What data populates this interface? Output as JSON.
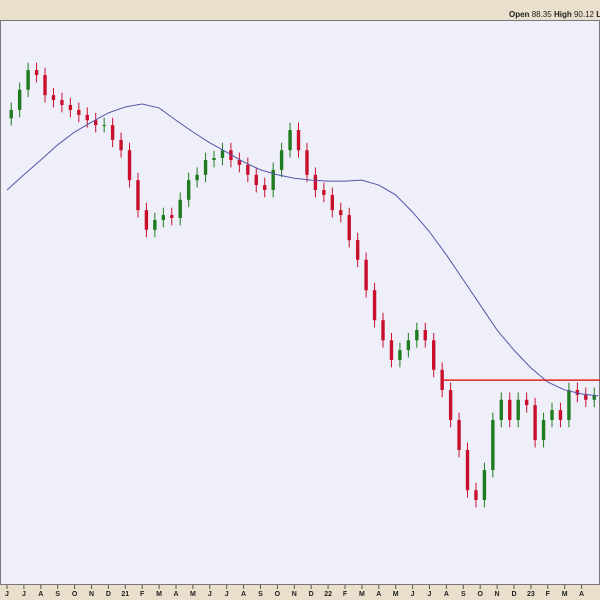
{
  "header": {
    "open_label": "Open",
    "open": 88.35,
    "high_label": "High",
    "high": 90.12,
    "low_label": "Lo"
  },
  "chart_data": {
    "type": "candlestick",
    "xlim": [
      -0.414,
      35.09
    ],
    "ylim": [
      55,
      170
    ],
    "xticks": [
      {
        "value": 0,
        "label": "J"
      },
      {
        "value": 1,
        "label": "J"
      },
      {
        "value": 2,
        "label": "A"
      },
      {
        "value": 3,
        "label": "S"
      },
      {
        "value": 4,
        "label": "O"
      },
      {
        "value": 5,
        "label": "N"
      },
      {
        "value": 6,
        "label": "D"
      },
      {
        "value": 7,
        "label": "21"
      },
      {
        "value": 8,
        "label": "F"
      },
      {
        "value": 9,
        "label": "M"
      },
      {
        "value": 10,
        "label": "A"
      },
      {
        "value": 11,
        "label": "M"
      },
      {
        "value": 12,
        "label": "J"
      },
      {
        "value": 13,
        "label": "J"
      },
      {
        "value": 14,
        "label": "A"
      },
      {
        "value": 15,
        "label": "S"
      },
      {
        "value": 16,
        "label": "O"
      },
      {
        "value": 17,
        "label": "N"
      },
      {
        "value": 18,
        "label": "D"
      },
      {
        "value": 19,
        "label": "22"
      },
      {
        "value": 20,
        "label": "F"
      },
      {
        "value": 21,
        "label": "M"
      },
      {
        "value": 22,
        "label": "A"
      },
      {
        "value": 23,
        "label": "M"
      },
      {
        "value": 24,
        "label": "J"
      },
      {
        "value": 25,
        "label": "J"
      },
      {
        "value": 26,
        "label": "A"
      },
      {
        "value": 27,
        "label": "S"
      },
      {
        "value": 28,
        "label": "O"
      },
      {
        "value": 29,
        "label": "N"
      },
      {
        "value": 30,
        "label": "D"
      },
      {
        "value": 31,
        "label": "23"
      },
      {
        "value": 32,
        "label": "F"
      },
      {
        "value": 33,
        "label": "M"
      },
      {
        "value": 34,
        "label": "A"
      }
    ],
    "up_color": "#1e7b1e",
    "down_color": "#c8102e",
    "candles": {
      "x": [
        0.25,
        0.75,
        1.25,
        1.75,
        2.25,
        2.75,
        3.25,
        3.75,
        4.25,
        4.75,
        5.25,
        5.75,
        6.25,
        6.75,
        7.25,
        7.75,
        8.25,
        8.75,
        9.25,
        9.75,
        10.25,
        10.75,
        11.25,
        11.75,
        12.25,
        12.75,
        13.25,
        13.75,
        14.25,
        14.75,
        15.25,
        15.75,
        16.25,
        16.75,
        17.25,
        17.75,
        18.25,
        18.75,
        19.25,
        19.75,
        20.25,
        20.75,
        21.25,
        21.75,
        22.25,
        22.75,
        23.25,
        23.75,
        24.25,
        24.75,
        25.25,
        25.75,
        26.25,
        26.75,
        27.25,
        27.75,
        28.25,
        28.75,
        29.25,
        29.75,
        30.25,
        30.75,
        31.25,
        31.75,
        32.25,
        32.75,
        33.25,
        33.75,
        34.25,
        34.75,
        35.25
      ],
      "open": [
        150.0,
        151.7,
        155.8,
        159.8,
        158.8,
        154.7,
        153.7,
        152.7,
        151.7,
        150.7,
        149.6,
        148.6,
        148.6,
        145.6,
        143.5,
        137.4,
        131.3,
        127.3,
        129.3,
        130.3,
        129.7,
        133.4,
        137.4,
        138.5,
        141.5,
        141.9,
        143.5,
        141.5,
        140.5,
        138.5,
        136.4,
        135.4,
        139.5,
        143.5,
        147.6,
        143.5,
        138.5,
        135.4,
        134.4,
        131.3,
        130.3,
        125.2,
        121.2,
        115.0,
        108.9,
        104.8,
        100.8,
        102.8,
        104.8,
        106.9,
        104.8,
        98.8,
        94.7,
        88.6,
        82.5,
        74.3,
        72.3,
        78.4,
        88.6,
        92.7,
        88.6,
        92.7,
        91.6,
        84.5,
        88.6,
        90.6,
        88.6,
        94.7,
        93.7,
        92.7,
        93.7
      ],
      "high": [
        153.2,
        157.3,
        161.3,
        161.3,
        160.3,
        156.2,
        155.2,
        154.2,
        153.2,
        152.2,
        151.1,
        150.1,
        150.1,
        147.1,
        145.0,
        138.9,
        132.8,
        130.8,
        131.8,
        131.8,
        134.9,
        138.9,
        140.0,
        143.0,
        143.4,
        145.0,
        145.0,
        143.0,
        142.0,
        140.0,
        137.9,
        141.0,
        145.0,
        149.1,
        149.1,
        145.0,
        140.0,
        136.9,
        135.9,
        132.8,
        131.8,
        126.7,
        122.7,
        116.5,
        110.4,
        106.3,
        104.3,
        106.3,
        108.4,
        108.4,
        106.3,
        100.3,
        96.2,
        90.1,
        84.0,
        75.8,
        79.9,
        90.1,
        94.2,
        94.2,
        94.2,
        94.2,
        93.1,
        90.1,
        92.1,
        92.1,
        96.2,
        96.2,
        95.2,
        95.2,
        95.2
      ],
      "low": [
        148.5,
        150.2,
        154.3,
        157.3,
        153.2,
        152.2,
        151.2,
        150.2,
        149.2,
        148.1,
        147.1,
        147.1,
        144.1,
        142.0,
        135.9,
        129.8,
        125.8,
        125.8,
        127.8,
        128.2,
        128.2,
        131.9,
        135.9,
        137.0,
        140.0,
        140.4,
        140.0,
        139.0,
        137.0,
        134.9,
        133.9,
        133.9,
        138.0,
        142.0,
        142.0,
        137.0,
        133.9,
        132.9,
        129.8,
        128.8,
        123.7,
        119.7,
        113.5,
        107.4,
        103.3,
        99.3,
        99.3,
        101.3,
        103.3,
        103.3,
        97.3,
        93.2,
        87.1,
        81.0,
        72.8,
        70.8,
        70.8,
        76.9,
        87.1,
        87.1,
        87.1,
        90.1,
        83.0,
        83.0,
        87.1,
        87.1,
        87.1,
        92.2,
        91.2,
        91.2,
        91.2
      ],
      "close": [
        151.7,
        155.8,
        159.8,
        158.8,
        154.7,
        153.7,
        152.7,
        151.7,
        150.7,
        149.6,
        148.6,
        148.6,
        145.6,
        143.5,
        137.4,
        131.3,
        127.3,
        129.3,
        130.3,
        129.7,
        133.4,
        137.4,
        138.5,
        141.5,
        141.9,
        143.5,
        141.5,
        140.5,
        138.5,
        136.4,
        135.4,
        139.5,
        143.5,
        147.6,
        143.5,
        138.5,
        135.4,
        134.4,
        131.3,
        130.3,
        125.2,
        121.2,
        115.0,
        108.9,
        104.8,
        100.8,
        102.8,
        104.8,
        106.9,
        104.8,
        98.8,
        94.7,
        88.6,
        82.5,
        74.3,
        72.3,
        78.4,
        88.6,
        92.7,
        88.6,
        92.7,
        91.6,
        84.5,
        88.6,
        90.6,
        88.6,
        94.7,
        93.7,
        92.7,
        93.7,
        92.7
      ]
    },
    "moving_average": {
      "color": "#5555aa",
      "x": [
        0,
        1,
        2,
        3,
        4,
        5,
        6,
        7,
        8,
        9,
        10,
        11,
        12,
        13,
        14,
        15,
        16,
        17,
        18,
        19,
        20,
        21,
        22,
        23,
        24,
        25,
        26,
        27,
        28,
        29,
        30,
        31,
        32,
        33,
        34,
        35
      ],
      "values": [
        135.4,
        138.5,
        141.5,
        144.6,
        147.2,
        149.2,
        151.1,
        152.3,
        152.9,
        152.1,
        149.6,
        147.2,
        145.0,
        143.1,
        141.1,
        139.5,
        138.5,
        137.8,
        137.4,
        137.2,
        137.2,
        137.4,
        136.4,
        134.4,
        130.9,
        126.9,
        122.2,
        117.1,
        112.0,
        106.9,
        102.8,
        99.2,
        96.3,
        94.7,
        93.9,
        93.5
      ]
    },
    "horizontal_line": {
      "color": "#e02020",
      "value": 96.7,
      "x": [
        25.8,
        35.09
      ]
    }
  }
}
